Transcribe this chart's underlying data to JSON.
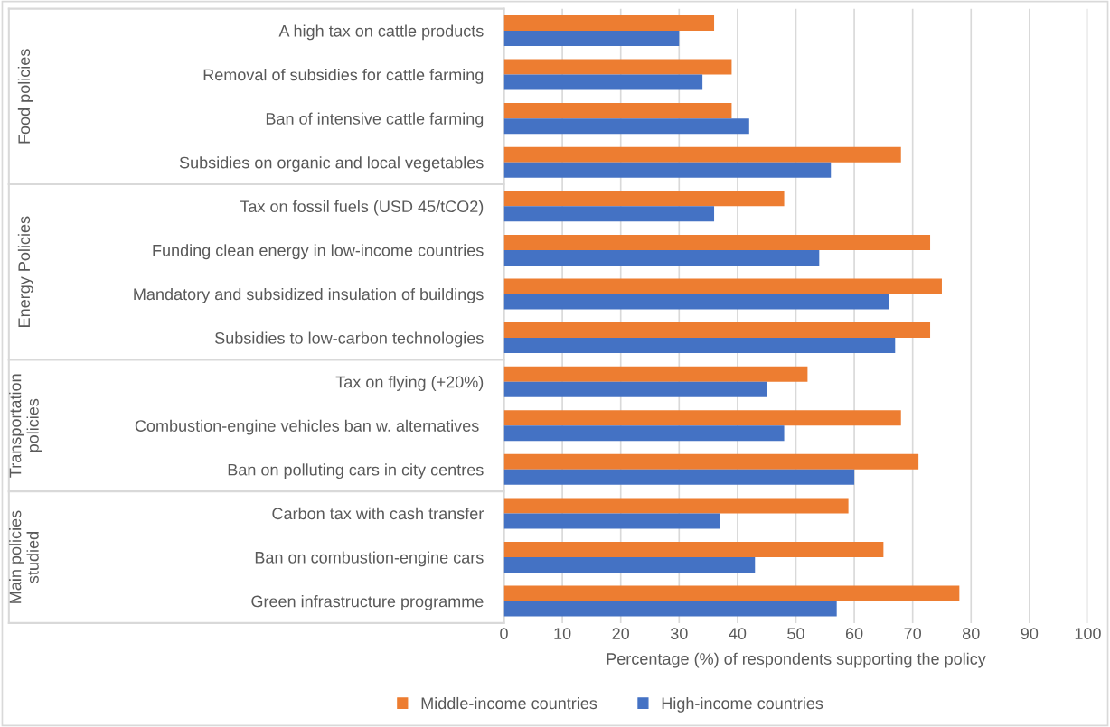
{
  "chart_data": {
    "type": "bar",
    "orientation": "horizontal",
    "categories": [
      "A high tax on cattle products",
      "Removal of subsidies for cattle farming",
      "Ban of intensive cattle farming",
      "Subsidies on organic and local vegetables",
      "Tax on fossil fuels (USD 45/tCO2)",
      "Funding clean energy in low-income countries",
      "Mandatory and subsidized insulation of buildings",
      "Subsidies to low-carbon technologies",
      "Tax on flying (+20%)",
      "Combustion-engine vehicles ban w. alternatives ",
      "Ban on polluting cars in city centres",
      "Carbon tax with cash transfer",
      "Ban on combustion-engine cars",
      "Green infrastructure programme"
    ],
    "series": [
      {
        "name": "Middle-income countries",
        "color": "#ed7d31",
        "values": [
          36,
          39,
          39,
          68,
          48,
          73,
          75,
          73,
          52,
          68,
          71,
          59,
          65,
          78
        ]
      },
      {
        "name": "High-income countries",
        "color": "#4472c4",
        "values": [
          30,
          34,
          42,
          56,
          36,
          54,
          66,
          67,
          45,
          48,
          60,
          37,
          43,
          57
        ]
      }
    ],
    "xlabel": "Percentage (%) of respondents supporting the policy",
    "xlim": [
      0,
      100
    ],
    "xticks": [
      0,
      10,
      20,
      30,
      40,
      50,
      60,
      70,
      80,
      90,
      100
    ],
    "grid": "x",
    "legend": "bottom",
    "annotations": [
      "Food policies",
      "Energy Policies",
      "Transportation\npolicies",
      "Main policies\nstudied"
    ]
  }
}
